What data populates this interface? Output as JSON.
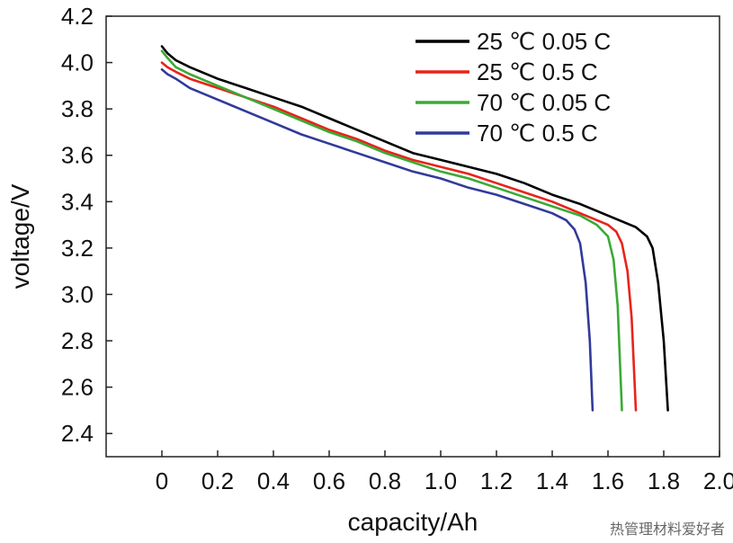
{
  "chart_data": {
    "type": "line",
    "xlabel": "capacity/Ah",
    "ylabel": "voltage/V",
    "xlim": [
      -0.2,
      2.0
    ],
    "ylim": [
      2.3,
      4.2
    ],
    "x_ticks": [
      {
        "value": 0.0,
        "label": "0"
      },
      {
        "value": 0.2,
        "label": "0.2"
      },
      {
        "value": 0.4,
        "label": "0.4"
      },
      {
        "value": 0.6,
        "label": "0.6"
      },
      {
        "value": 0.8,
        "label": "0.8"
      },
      {
        "value": 1.0,
        "label": "1.0"
      },
      {
        "value": 1.2,
        "label": "1.2"
      },
      {
        "value": 1.4,
        "label": "1.4"
      },
      {
        "value": 1.6,
        "label": "1.6"
      },
      {
        "value": 1.8,
        "label": "1.8"
      },
      {
        "value": 2.0,
        "label": "2.0"
      }
    ],
    "y_ticks": [
      {
        "value": 2.4,
        "label": "2.4"
      },
      {
        "value": 2.6,
        "label": "2.6"
      },
      {
        "value": 2.8,
        "label": "2.8"
      },
      {
        "value": 3.0,
        "label": "3.0"
      },
      {
        "value": 3.2,
        "label": "3.2"
      },
      {
        "value": 3.4,
        "label": "3.4"
      },
      {
        "value": 3.6,
        "label": "3.6"
      },
      {
        "value": 3.8,
        "label": "3.8"
      },
      {
        "value": 4.0,
        "label": "4.0"
      },
      {
        "value": 4.2,
        "label": "4.2"
      }
    ],
    "grid": false,
    "legend_position": "top-right",
    "series": [
      {
        "name": "25 ℃ 0.05 C",
        "color": "#000000",
        "points": [
          [
            0,
            4.07
          ],
          [
            0.02,
            4.04
          ],
          [
            0.05,
            4.01
          ],
          [
            0.1,
            3.98
          ],
          [
            0.2,
            3.93
          ],
          [
            0.3,
            3.89
          ],
          [
            0.4,
            3.85
          ],
          [
            0.5,
            3.81
          ],
          [
            0.6,
            3.76
          ],
          [
            0.7,
            3.71
          ],
          [
            0.8,
            3.66
          ],
          [
            0.9,
            3.61
          ],
          [
            1.0,
            3.58
          ],
          [
            1.1,
            3.55
          ],
          [
            1.2,
            3.52
          ],
          [
            1.3,
            3.48
          ],
          [
            1.4,
            3.43
          ],
          [
            1.5,
            3.39
          ],
          [
            1.6,
            3.34
          ],
          [
            1.7,
            3.29
          ],
          [
            1.74,
            3.25
          ],
          [
            1.76,
            3.2
          ],
          [
            1.78,
            3.05
          ],
          [
            1.8,
            2.8
          ],
          [
            1.815,
            2.5
          ]
        ]
      },
      {
        "name": "25 ℃ 0.5 C",
        "color": "#e8231a",
        "points": [
          [
            0,
            4.0
          ],
          [
            0.02,
            3.98
          ],
          [
            0.05,
            3.96
          ],
          [
            0.1,
            3.93
          ],
          [
            0.2,
            3.89
          ],
          [
            0.3,
            3.85
          ],
          [
            0.4,
            3.81
          ],
          [
            0.5,
            3.76
          ],
          [
            0.6,
            3.71
          ],
          [
            0.7,
            3.67
          ],
          [
            0.8,
            3.62
          ],
          [
            0.9,
            3.58
          ],
          [
            1.0,
            3.55
          ],
          [
            1.1,
            3.52
          ],
          [
            1.2,
            3.48
          ],
          [
            1.3,
            3.44
          ],
          [
            1.4,
            3.4
          ],
          [
            1.5,
            3.35
          ],
          [
            1.6,
            3.3
          ],
          [
            1.63,
            3.27
          ],
          [
            1.65,
            3.22
          ],
          [
            1.67,
            3.1
          ],
          [
            1.685,
            2.9
          ],
          [
            1.7,
            2.5
          ]
        ]
      },
      {
        "name": "70 ℃ 0.05 C",
        "color": "#3aaa35",
        "points": [
          [
            0,
            4.05
          ],
          [
            0.02,
            4.02
          ],
          [
            0.05,
            3.98
          ],
          [
            0.1,
            3.95
          ],
          [
            0.2,
            3.9
          ],
          [
            0.3,
            3.85
          ],
          [
            0.4,
            3.8
          ],
          [
            0.5,
            3.75
          ],
          [
            0.6,
            3.7
          ],
          [
            0.7,
            3.66
          ],
          [
            0.8,
            3.61
          ],
          [
            0.9,
            3.57
          ],
          [
            1.0,
            3.53
          ],
          [
            1.1,
            3.5
          ],
          [
            1.2,
            3.46
          ],
          [
            1.3,
            3.42
          ],
          [
            1.4,
            3.38
          ],
          [
            1.5,
            3.34
          ],
          [
            1.56,
            3.3
          ],
          [
            1.6,
            3.25
          ],
          [
            1.62,
            3.15
          ],
          [
            1.635,
            2.95
          ],
          [
            1.65,
            2.5
          ]
        ]
      },
      {
        "name": "70 ℃ 0.5 C",
        "color": "#323a9a",
        "points": [
          [
            0,
            3.97
          ],
          [
            0.02,
            3.95
          ],
          [
            0.05,
            3.93
          ],
          [
            0.1,
            3.89
          ],
          [
            0.2,
            3.84
          ],
          [
            0.3,
            3.79
          ],
          [
            0.4,
            3.74
          ],
          [
            0.5,
            3.69
          ],
          [
            0.6,
            3.65
          ],
          [
            0.7,
            3.61
          ],
          [
            0.8,
            3.57
          ],
          [
            0.9,
            3.53
          ],
          [
            1.0,
            3.5
          ],
          [
            1.1,
            3.46
          ],
          [
            1.2,
            3.43
          ],
          [
            1.3,
            3.39
          ],
          [
            1.4,
            3.35
          ],
          [
            1.45,
            3.32
          ],
          [
            1.48,
            3.28
          ],
          [
            1.5,
            3.22
          ],
          [
            1.52,
            3.05
          ],
          [
            1.535,
            2.8
          ],
          [
            1.545,
            2.5
          ]
        ]
      }
    ]
  },
  "watermark": "热管理材料爱好者"
}
